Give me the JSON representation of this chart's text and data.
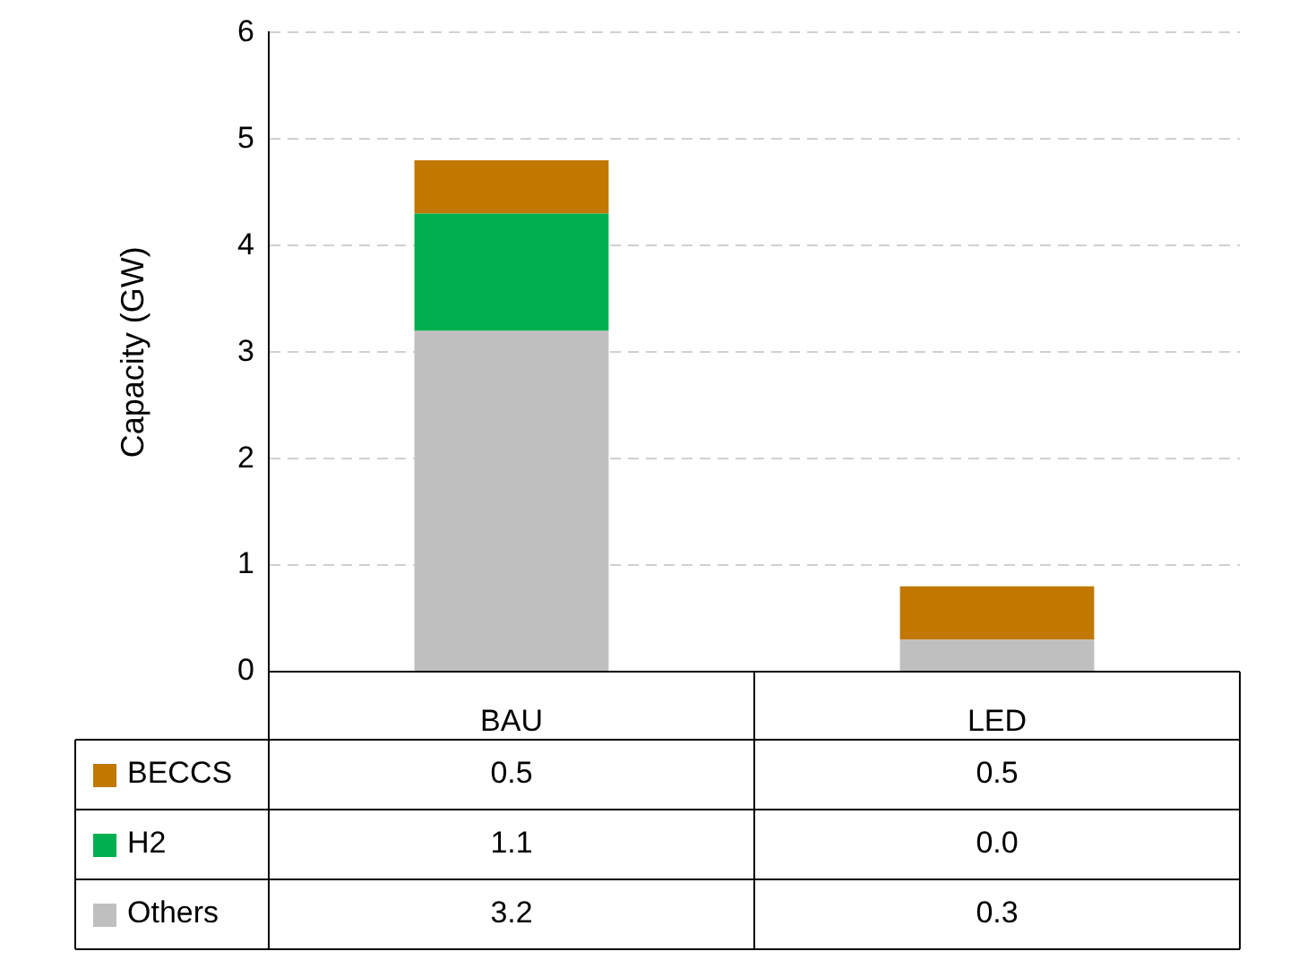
{
  "chart_data": {
    "type": "bar",
    "ylabel": "Capacity (GW)",
    "categories": [
      "BAU",
      "LED"
    ],
    "stacked": true,
    "legend": "bottom",
    "grid": "y",
    "line_style": "dashed",
    "ylim": [
      0,
      6
    ],
    "yticks": [
      0,
      1,
      2,
      3,
      4,
      5,
      6
    ],
    "series": [
      {
        "name": "Others",
        "color": "#bfbfbf",
        "values": [
          3.2,
          0.3
        ],
        "value_labels": [
          "3.2",
          "0.3"
        ]
      },
      {
        "name": "H2",
        "color": "#00b050",
        "values": [
          1.1,
          0.0
        ],
        "value_labels": [
          "1.1",
          "0.0"
        ]
      },
      {
        "name": "BECCS",
        "color": "#c07800",
        "values": [
          0.5,
          0.5
        ],
        "value_labels": [
          "0.5",
          "0.5"
        ]
      }
    ]
  }
}
